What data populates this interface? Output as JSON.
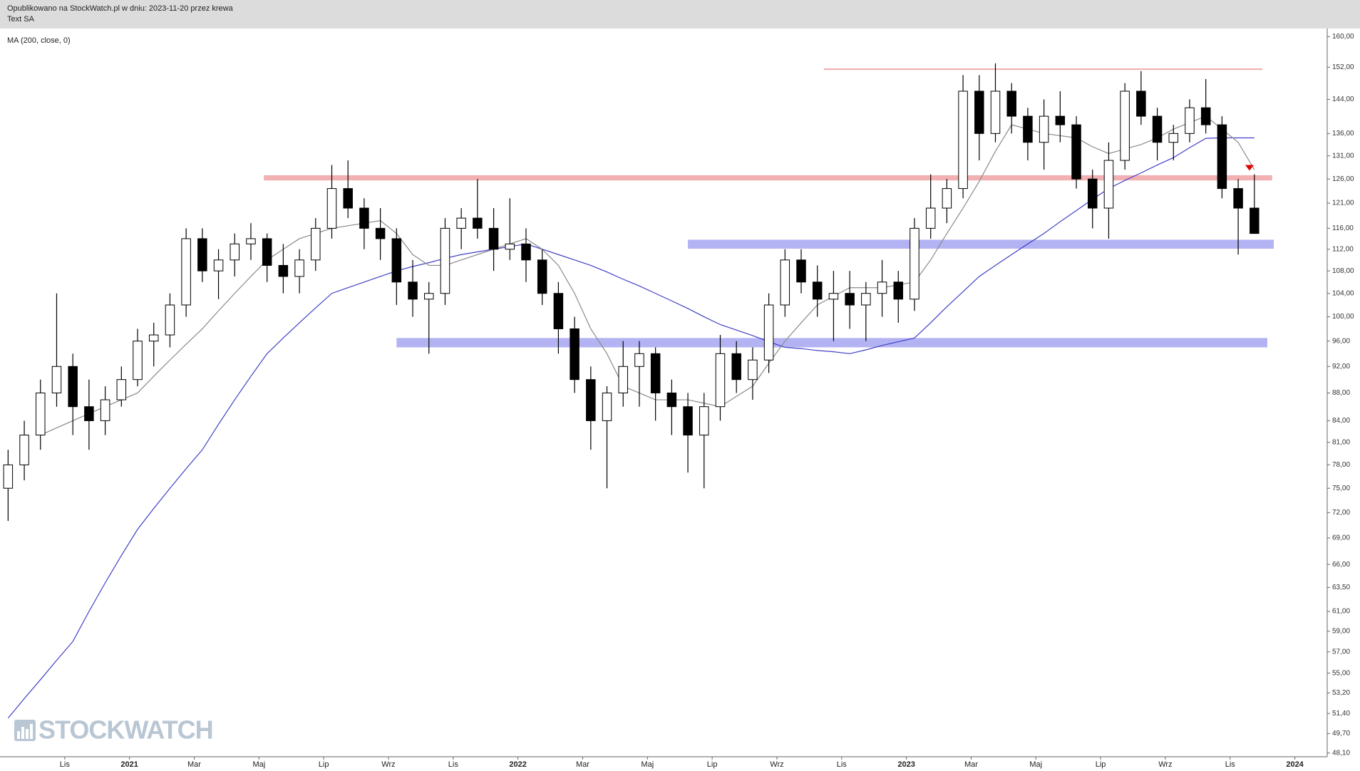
{
  "chart_data": {
    "type": "candlestick",
    "title": "Opublikowano na StockWatch.pl w dniu: 2023-11-20 przez krewa",
    "subtitle": "Text SA",
    "watermark": "STOCKWATCH",
    "log_scale": true,
    "categories": [
      null,
      null,
      null,
      null,
      "Lis",
      null,
      null,
      null,
      "2021",
      null,
      null,
      null,
      "Mar",
      null,
      null,
      null,
      "Maj",
      null,
      null,
      null,
      "Lip",
      null,
      null,
      null,
      "Wrz",
      null,
      null,
      null,
      "Lis",
      null,
      null,
      null,
      "2022",
      null,
      null,
      null,
      "Mar",
      null,
      null,
      null,
      "Maj",
      null,
      null,
      null,
      "Lip",
      null,
      null,
      null,
      "Wrz",
      null,
      null,
      null,
      "Lis",
      null,
      null,
      null,
      "2023",
      null,
      null,
      null,
      "Mar",
      null,
      null,
      null,
      "Maj",
      null,
      null,
      null,
      "Lip",
      null,
      null,
      null,
      "Wrz",
      null,
      null,
      null,
      "Lis",
      null,
      null,
      null,
      "2024",
      null
    ],
    "open": [
      75,
      78,
      82,
      88,
      92,
      86,
      84,
      87,
      90,
      96,
      97,
      102,
      114,
      108,
      110,
      113,
      114,
      109,
      107,
      110,
      116,
      124,
      120,
      116,
      114,
      106,
      103,
      104,
      116,
      118,
      116,
      112,
      113,
      110,
      104,
      98,
      90,
      84,
      88,
      92,
      94,
      88,
      86,
      82,
      86,
      94,
      90,
      93,
      102,
      110,
      106,
      103,
      104,
      102,
      104,
      106,
      103,
      116,
      120,
      124,
      146,
      136,
      146,
      140,
      134,
      140,
      138,
      126,
      120,
      130,
      146,
      140,
      134,
      136,
      142,
      138,
      124,
      120,
      null,
      null,
      null,
      null
    ],
    "high": [
      80,
      84,
      90,
      104,
      94,
      90,
      89,
      92,
      98,
      99,
      104,
      116,
      116,
      112,
      115,
      117,
      115,
      113,
      112,
      118,
      129,
      130,
      122,
      120,
      116,
      110,
      106,
      118,
      120,
      126,
      120,
      122,
      116,
      112,
      106,
      100,
      92,
      89,
      96,
      96,
      95,
      90,
      88,
      88,
      97,
      96,
      95,
      104,
      112,
      112,
      109,
      108,
      108,
      106,
      110,
      108,
      118,
      127,
      126,
      150,
      150,
      153,
      148,
      142,
      144,
      146,
      140,
      128,
      134,
      148,
      151,
      142,
      138,
      144,
      149,
      140,
      126,
      127,
      null,
      null,
      null,
      null
    ],
    "low": [
      71,
      76,
      80,
      86,
      82,
      80,
      82,
      86,
      89,
      92,
      95,
      100,
      106,
      103,
      107,
      110,
      106,
      104,
      104,
      108,
      114,
      118,
      112,
      110,
      102,
      100,
      94,
      102,
      112,
      114,
      108,
      110,
      106,
      102,
      94,
      88,
      80,
      75,
      86,
      86,
      84,
      82,
      77,
      75,
      84,
      88,
      87,
      91,
      100,
      104,
      100,
      96,
      98,
      96,
      100,
      99,
      101,
      114,
      117,
      122,
      130,
      134,
      136,
      130,
      128,
      134,
      124,
      116,
      114,
      128,
      138,
      130,
      130,
      134,
      136,
      122,
      111,
      115,
      null,
      null,
      null,
      null
    ],
    "close": [
      78,
      82,
      88,
      92,
      86,
      84,
      87,
      90,
      96,
      97,
      102,
      114,
      108,
      110,
      113,
      114,
      109,
      107,
      110,
      116,
      124,
      120,
      116,
      114,
      106,
      103,
      104,
      116,
      118,
      116,
      112,
      113,
      110,
      104,
      98,
      90,
      84,
      88,
      92,
      94,
      88,
      86,
      82,
      86,
      94,
      90,
      93,
      102,
      110,
      106,
      103,
      104,
      102,
      104,
      106,
      103,
      116,
      120,
      124,
      146,
      136,
      146,
      140,
      134,
      140,
      138,
      126,
      120,
      130,
      146,
      140,
      134,
      136,
      142,
      138,
      124,
      120,
      115,
      null,
      null,
      null,
      null
    ],
    "up_color": "#ffffff",
    "down_color": "#000000",
    "lines": [
      {
        "name": "MA (200, close, 0)",
        "color": "#4040c8",
        "values": [
          51,
          52.7,
          54.4,
          56.2,
          58,
          61,
          64,
          67,
          70,
          72.5,
          75,
          77.5,
          80,
          83.5,
          87,
          90.5,
          94,
          96.5,
          99,
          101.5,
          104,
          105,
          106,
          107,
          108,
          108.8,
          109.5,
          110.3,
          111,
          111.5,
          112,
          112.5,
          113,
          112,
          111,
          110,
          109,
          107.8,
          106.5,
          105.3,
          104,
          102.7,
          101.4,
          100,
          98.7,
          97.8,
          96.9,
          95.9,
          95,
          94.8,
          94.5,
          94.3,
          94,
          94.6,
          95.3,
          95.9,
          96.5,
          99,
          101.7,
          104.3,
          107,
          109,
          111,
          113,
          115,
          117.3,
          119.5,
          121.8,
          124,
          125.7,
          127.3,
          129,
          130.6,
          132.8,
          134.9,
          135,
          135,
          135,
          null,
          null,
          null,
          null
        ]
      },
      {
        "color": "#8a8a8a",
        "values": [
          null,
          null,
          82,
          83,
          84,
          85,
          86,
          87,
          88,
          90.5,
          93,
          95.5,
          98,
          101,
          104,
          107,
          110,
          112,
          114,
          115,
          116,
          116.5,
          117,
          117.5,
          115,
          111,
          109,
          109,
          110,
          111,
          112,
          113,
          114,
          112,
          109,
          104,
          98,
          94,
          89,
          88,
          87,
          87,
          87,
          86.5,
          86,
          87.5,
          89,
          92.5,
          96,
          99,
          102,
          103.5,
          105,
          105,
          105,
          105.5,
          106,
          110,
          115,
          120,
          125.5,
          132,
          138,
          137,
          136,
          135.5,
          135,
          133,
          131.5,
          132.5,
          133.5,
          135,
          137,
          138.5,
          140,
          137,
          134,
          128,
          null,
          null,
          null,
          null
        ]
      }
    ],
    "zones": [
      {
        "low": 151.3,
        "high": 151.7,
        "start": 50.9,
        "end": 78,
        "color": "#f2b0b2"
      },
      {
        "low": 125.7,
        "high": 126.8,
        "start": 16.3,
        "end": 78.6,
        "color": "#f2b0b2"
      },
      {
        "low": 112.1,
        "high": 113.8,
        "start": 42.5,
        "end": 78.7,
        "color": "#b3b3f3"
      },
      {
        "low": 95.0,
        "high": 96.5,
        "start": 24.5,
        "end": 78.3,
        "color": "#b3b3f3"
      }
    ],
    "marker": {
      "value": 128.4,
      "x": 77.2,
      "color": "#e00000"
    },
    "ylim": [
      47.8,
      162
    ],
    "yticks": [
      {
        "value": 160,
        "label": "160,00"
      },
      {
        "value": 152,
        "label": "152,00"
      },
      {
        "value": 144,
        "label": "144,00"
      },
      {
        "value": 136,
        "label": "136,00"
      },
      {
        "value": 131,
        "label": "131,00"
      },
      {
        "value": 126,
        "label": "126,00"
      },
      {
        "value": 121,
        "label": "121,00"
      },
      {
        "value": 116,
        "label": "116,00"
      },
      {
        "value": 112,
        "label": "112,00"
      },
      {
        "value": 108,
        "label": "108,00"
      },
      {
        "value": 104,
        "label": "104,00"
      },
      {
        "value": 100,
        "label": "100,00"
      },
      {
        "value": 96,
        "label": "96,00"
      },
      {
        "value": 92,
        "label": "92,00"
      },
      {
        "value": 88,
        "label": "88,00"
      },
      {
        "value": 84,
        "label": "84,00"
      },
      {
        "value": 81,
        "label": "81,00"
      },
      {
        "value": 78,
        "label": "78,00"
      },
      {
        "value": 75,
        "label": "75,00"
      },
      {
        "value": 72,
        "label": "72,00"
      },
      {
        "value": 69,
        "label": "69,00"
      },
      {
        "value": 66,
        "label": "66,00"
      },
      {
        "value": 63.5,
        "label": "63,50"
      },
      {
        "value": 61,
        "label": "61,00"
      },
      {
        "value": 59,
        "label": "59,00"
      },
      {
        "value": 57,
        "label": "57,00"
      },
      {
        "value": 55,
        "label": "55,00"
      },
      {
        "value": 53.2,
        "label": "53,20"
      },
      {
        "value": 51.4,
        "label": "51,40"
      },
      {
        "value": 49.7,
        "label": "49,70"
      },
      {
        "value": 48.1,
        "label": "48,10"
      }
    ]
  }
}
